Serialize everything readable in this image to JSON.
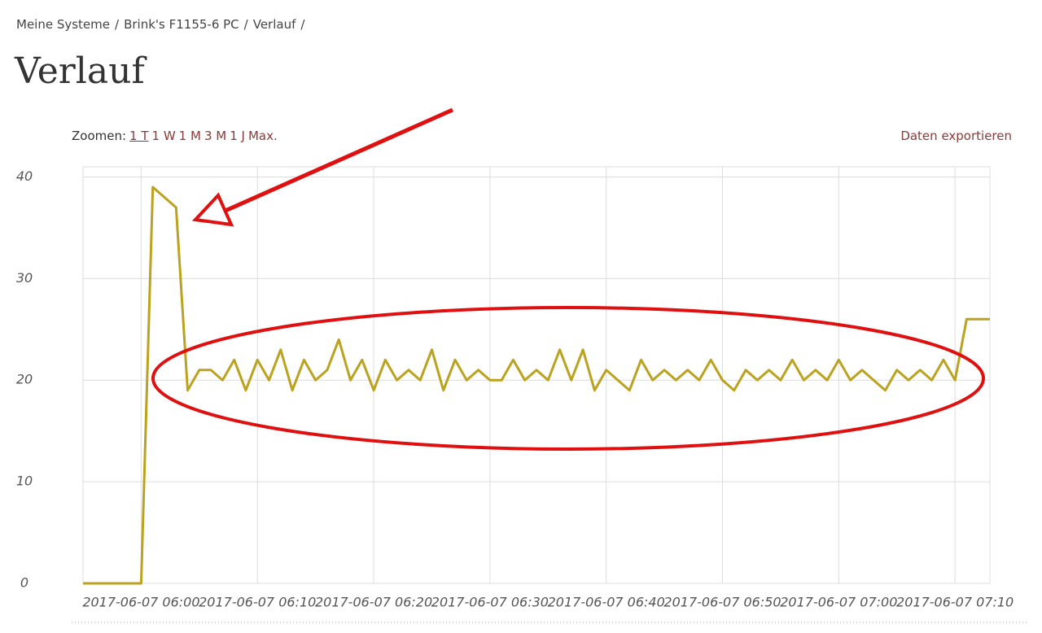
{
  "breadcrumb": {
    "items": [
      "Meine Systeme",
      "Brink's F1155-6 PC",
      "Verlauf"
    ],
    "separator": "/"
  },
  "header": {
    "title": "Verlauf"
  },
  "zoom": {
    "label": "Zoomen:",
    "options": [
      "1 T",
      "1 W",
      "1 M",
      "3 M",
      "1 J",
      "Max."
    ]
  },
  "export": "Daten exportieren",
  "chart_data": {
    "type": "line",
    "color": "#bba21f",
    "x": [
      "2017-06-07 05:55",
      "2017-06-07 05:56",
      "2017-06-07 05:57",
      "2017-06-07 05:58",
      "2017-06-07 05:59",
      "2017-06-07 06:00",
      "2017-06-07 06:01",
      "2017-06-07 06:02",
      "2017-06-07 06:03",
      "2017-06-07 06:04",
      "2017-06-07 06:05",
      "2017-06-07 06:06",
      "2017-06-07 06:07",
      "2017-06-07 06:08",
      "2017-06-07 06:09",
      "2017-06-07 06:10",
      "2017-06-07 06:11",
      "2017-06-07 06:12",
      "2017-06-07 06:13",
      "2017-06-07 06:14",
      "2017-06-07 06:15",
      "2017-06-07 06:16",
      "2017-06-07 06:17",
      "2017-06-07 06:18",
      "2017-06-07 06:19",
      "2017-06-07 06:20",
      "2017-06-07 06:21",
      "2017-06-07 06:22",
      "2017-06-07 06:23",
      "2017-06-07 06:24",
      "2017-06-07 06:25",
      "2017-06-07 06:26",
      "2017-06-07 06:27",
      "2017-06-07 06:28",
      "2017-06-07 06:29",
      "2017-06-07 06:30",
      "2017-06-07 06:31",
      "2017-06-07 06:32",
      "2017-06-07 06:33",
      "2017-06-07 06:34",
      "2017-06-07 06:35",
      "2017-06-07 06:36",
      "2017-06-07 06:37",
      "2017-06-07 06:38",
      "2017-06-07 06:39",
      "2017-06-07 06:40",
      "2017-06-07 06:41",
      "2017-06-07 06:42",
      "2017-06-07 06:43",
      "2017-06-07 06:44",
      "2017-06-07 06:45",
      "2017-06-07 06:46",
      "2017-06-07 06:47",
      "2017-06-07 06:48",
      "2017-06-07 06:49",
      "2017-06-07 06:50",
      "2017-06-07 06:51",
      "2017-06-07 06:52",
      "2017-06-07 06:53",
      "2017-06-07 06:54",
      "2017-06-07 06:55",
      "2017-06-07 06:56",
      "2017-06-07 06:57",
      "2017-06-07 06:58",
      "2017-06-07 06:59",
      "2017-06-07 07:00",
      "2017-06-07 07:01",
      "2017-06-07 07:02",
      "2017-06-07 07:03",
      "2017-06-07 07:04",
      "2017-06-07 07:05",
      "2017-06-07 07:06",
      "2017-06-07 07:07",
      "2017-06-07 07:08",
      "2017-06-07 07:09",
      "2017-06-07 07:10",
      "2017-06-07 07:11",
      "2017-06-07 07:12",
      "2017-06-07 07:13"
    ],
    "values": [
      0,
      0,
      0,
      0,
      0,
      0,
      39,
      38,
      37,
      19,
      21,
      21,
      20,
      22,
      19,
      22,
      20,
      23,
      19,
      22,
      20,
      21,
      24,
      20,
      22,
      19,
      22,
      20,
      21,
      20,
      23,
      19,
      22,
      20,
      21,
      20,
      20,
      22,
      20,
      21,
      20,
      23,
      20,
      23,
      19,
      21,
      20,
      19,
      22,
      20,
      21,
      20,
      21,
      20,
      22,
      20,
      19,
      21,
      20,
      21,
      20,
      22,
      20,
      21,
      20,
      22,
      20,
      21,
      20,
      19,
      21,
      20,
      21,
      20,
      22,
      20,
      26,
      26,
      26
    ],
    "xlim": [
      "2017-06-07 05:55",
      "2017-06-07 07:13"
    ],
    "xticks": [
      "2017-06-07 06:00",
      "2017-06-07 06:10",
      "2017-06-07 06:20",
      "2017-06-07 06:30",
      "2017-06-07 06:40",
      "2017-06-07 06:50",
      "2017-06-07 07:00",
      "2017-06-07 07:10"
    ],
    "ylim": [
      0,
      41
    ],
    "yticks": [
      0,
      10,
      20,
      30,
      40
    ],
    "grid": true
  }
}
